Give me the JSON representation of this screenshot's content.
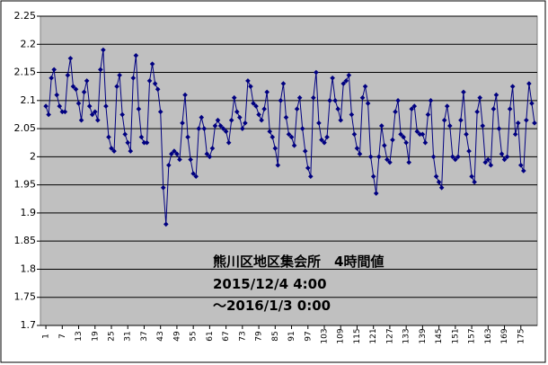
{
  "chart_data": {
    "type": "line",
    "annotations": [
      "熊川区地区集会所　4時間値",
      "2015/12/4 4:00",
      "～2016/1/3 0:00"
    ],
    "x": [
      1,
      2,
      3,
      4,
      5,
      6,
      7,
      8,
      9,
      10,
      11,
      12,
      13,
      14,
      15,
      16,
      17,
      18,
      19,
      20,
      21,
      22,
      23,
      24,
      25,
      26,
      27,
      28,
      29,
      30,
      31,
      32,
      33,
      34,
      35,
      36,
      37,
      38,
      39,
      40,
      41,
      42,
      43,
      44,
      45,
      46,
      47,
      48,
      49,
      50,
      51,
      52,
      53,
      54,
      55,
      56,
      57,
      58,
      59,
      60,
      61,
      62,
      63,
      64,
      65,
      66,
      67,
      68,
      69,
      70,
      71,
      72,
      73,
      74,
      75,
      76,
      77,
      78,
      79,
      80,
      81,
      82,
      83,
      84,
      85,
      86,
      87,
      88,
      89,
      90,
      91,
      92,
      93,
      94,
      95,
      96,
      97,
      98,
      99,
      100,
      101,
      102,
      103,
      104,
      105,
      106,
      107,
      108,
      109,
      110,
      111,
      112,
      113,
      114,
      115,
      116,
      117,
      118,
      119,
      120,
      121,
      122,
      123,
      124,
      125,
      126,
      127,
      128,
      129,
      130,
      131,
      132,
      133,
      134,
      135,
      136,
      137,
      138,
      139,
      140,
      141,
      142,
      143,
      144,
      145,
      146,
      147,
      148,
      149,
      150,
      151,
      152,
      153,
      154,
      155,
      156,
      157,
      158,
      159,
      160,
      161,
      162,
      163,
      164,
      165,
      166,
      167,
      168,
      169,
      170,
      171,
      172,
      173,
      174,
      175,
      176,
      177,
      178,
      179,
      180
    ],
    "series": [
      {
        "color": "#000080",
        "values": [
          2.09,
          2.075,
          2.14,
          2.155,
          2.11,
          2.09,
          2.08,
          2.08,
          2.145,
          2.175,
          2.125,
          2.12,
          2.095,
          2.065,
          2.115,
          2.135,
          2.09,
          2.075,
          2.08,
          2.065,
          2.155,
          2.19,
          2.09,
          2.035,
          2.015,
          2.01,
          2.125,
          2.145,
          2.075,
          2.04,
          2.025,
          2.01,
          2.14,
          2.18,
          2.085,
          2.035,
          2.025,
          2.025,
          2.135,
          2.165,
          2.13,
          2.12,
          2.08,
          1.945,
          1.88,
          1.985,
          2.005,
          2.01,
          2.005,
          1.995,
          2.06,
          2.11,
          2.035,
          1.995,
          1.97,
          1.965,
          2.05,
          2.07,
          2.05,
          2.005,
          2.0,
          2.015,
          2.055,
          2.065,
          2.055,
          2.05,
          2.045,
          2.025,
          2.065,
          2.105,
          2.08,
          2.07,
          2.05,
          2.06,
          2.135,
          2.125,
          2.095,
          2.09,
          2.075,
          2.065,
          2.085,
          2.115,
          2.045,
          2.035,
          2.015,
          1.985,
          2.1,
          2.13,
          2.07,
          2.04,
          2.035,
          2.02,
          2.085,
          2.105,
          2.05,
          2.01,
          1.98,
          1.965,
          2.105,
          2.15,
          2.06,
          2.03,
          2.025,
          2.035,
          2.1,
          2.14,
          2.1,
          2.085,
          2.065,
          2.13,
          2.135,
          2.145,
          2.075,
          2.04,
          2.015,
          2.005,
          2.105,
          2.125,
          2.095,
          2.0,
          1.965,
          1.935,
          2.0,
          2.055,
          2.02,
          1.995,
          1.99,
          2.03,
          2.08,
          2.1,
          2.04,
          2.035,
          2.025,
          1.99,
          2.085,
          2.09,
          2.045,
          2.04,
          2.04,
          2.025,
          2.075,
          2.1,
          2.0,
          1.965,
          1.955,
          1.945,
          2.065,
          2.09,
          2.055,
          2.0,
          1.995,
          2.0,
          2.065,
          2.115,
          2.04,
          2.01,
          1.965,
          1.955,
          2.08,
          2.105,
          2.055,
          1.99,
          1.995,
          1.985,
          2.085,
          2.11,
          2.05,
          2.005,
          1.995,
          2.0,
          2.085,
          2.125,
          2.04,
          2.06,
          1.985,
          1.975,
          2.065,
          2.13,
          2.095,
          2.06
        ]
      }
    ],
    "xlim": [
      -1,
      181
    ],
    "xticks": [
      1,
      7,
      13,
      19,
      25,
      31,
      37,
      43,
      49,
      55,
      61,
      67,
      73,
      79,
      85,
      91,
      97,
      103,
      109,
      115,
      121,
      127,
      133,
      139,
      145,
      151,
      157,
      163,
      169,
      175
    ],
    "ylim": [
      1.7,
      2.25
    ],
    "yticks": [
      1.7,
      1.75,
      1.8,
      1.85,
      1.9,
      1.95,
      2,
      2.05,
      2.1,
      2.15,
      2.2,
      2.25
    ],
    "grid": true
  }
}
